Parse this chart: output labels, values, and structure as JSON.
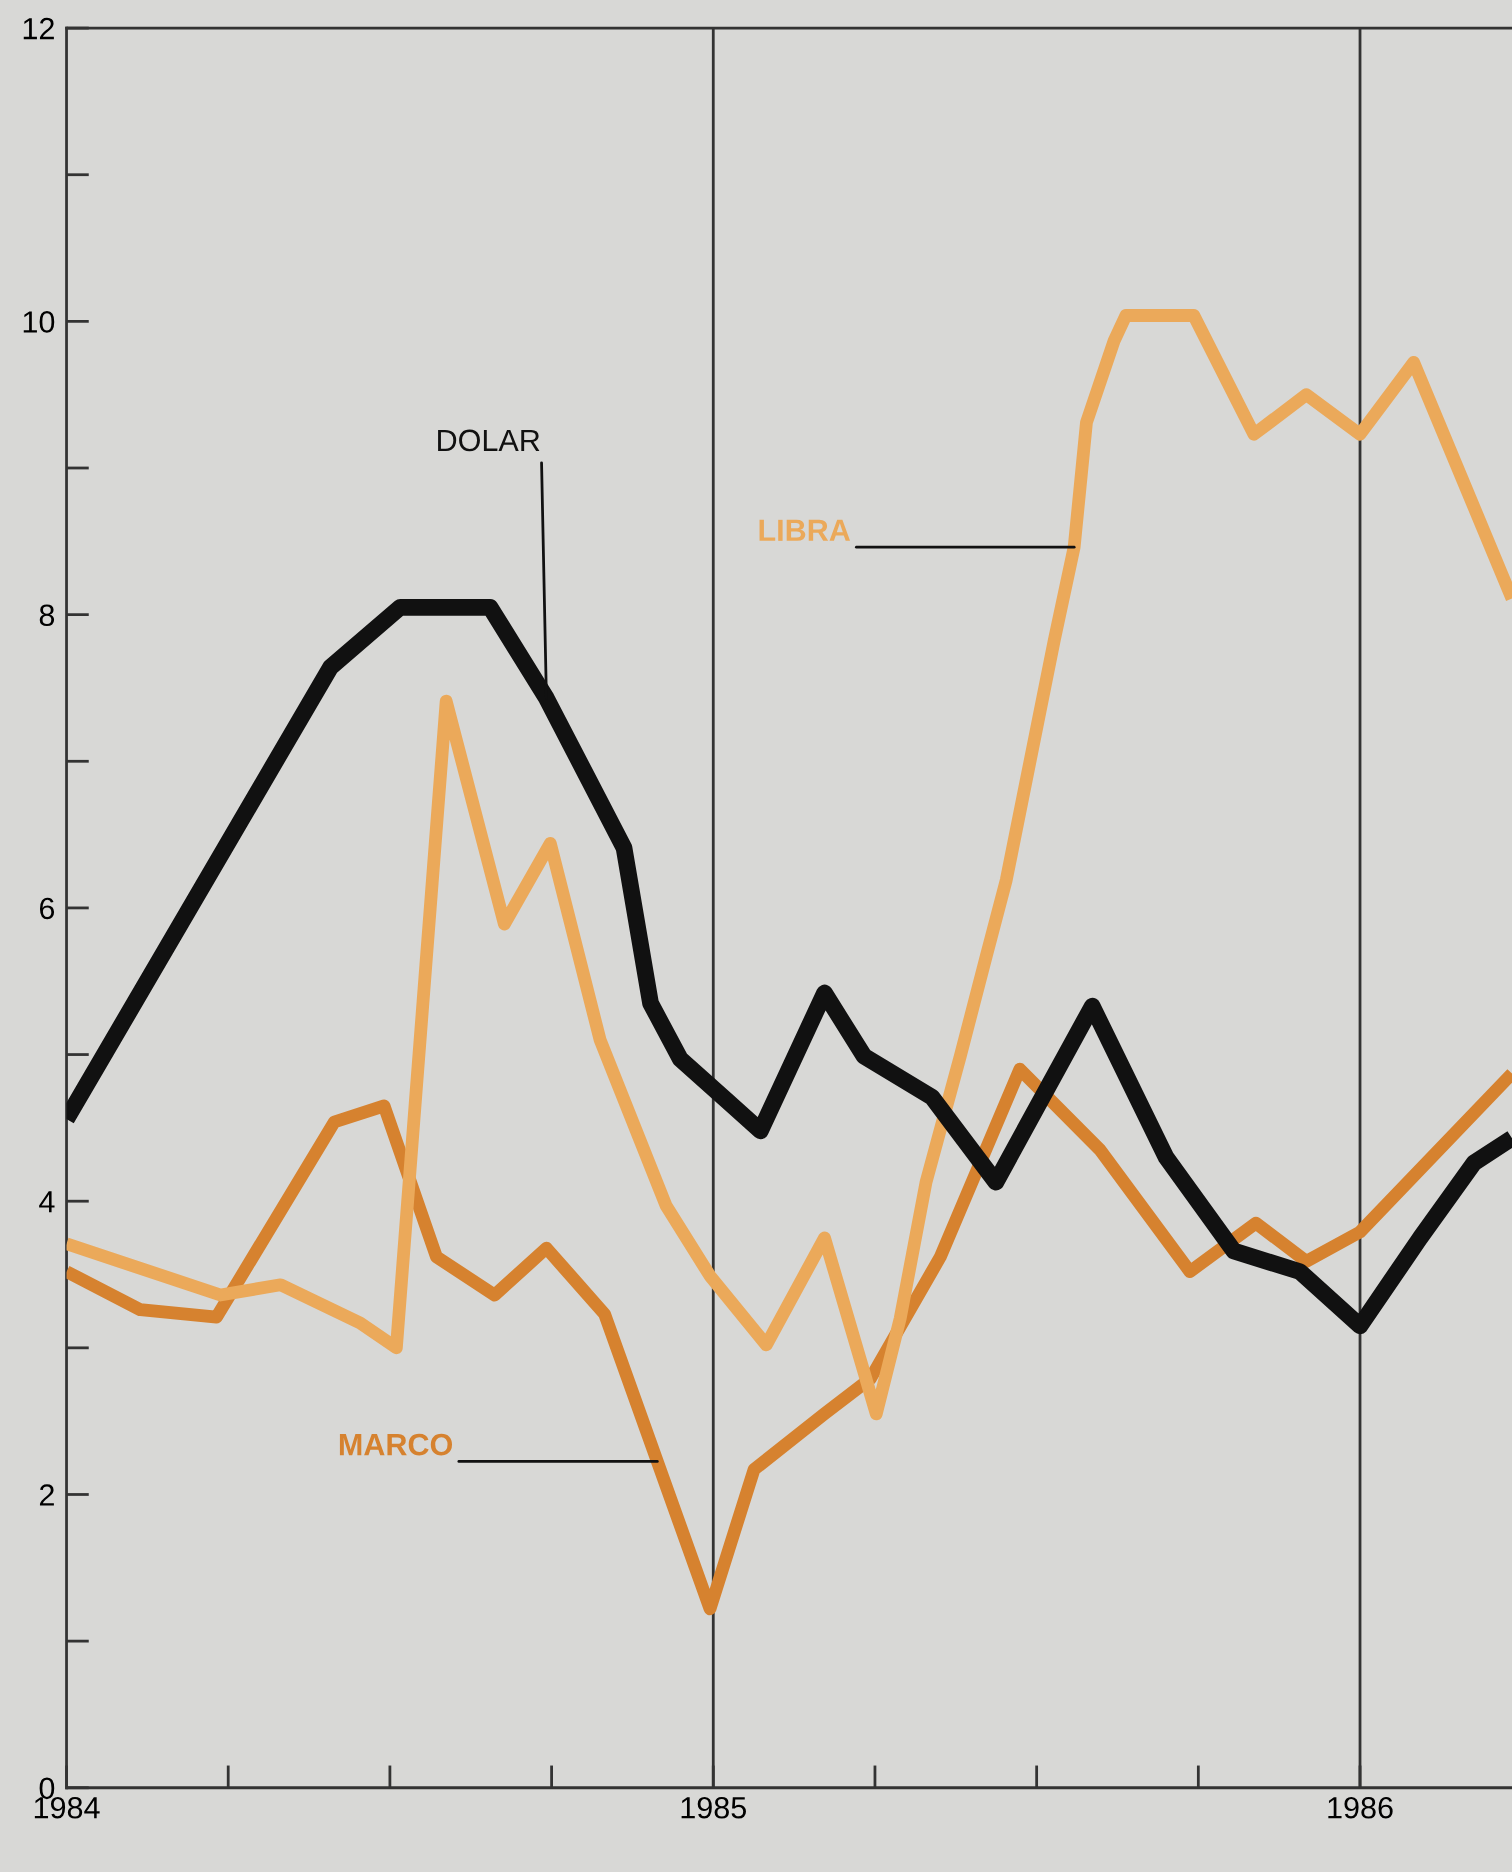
{
  "chart_data": {
    "type": "line",
    "series": [
      {
        "name": "DOLAR",
        "color": "#111111",
        "x": [
          1984.0,
          1984.408,
          1984.516,
          1984.655,
          1984.742,
          1984.862,
          1984.903,
          1984.949,
          1985.02,
          1985.073,
          1985.172,
          1985.233,
          1985.338,
          1985.437,
          1985.586,
          1985.7,
          1985.805,
          1985.907,
          1986.0,
          1986.093,
          1986.176,
          1986.235
        ],
        "values": [
          4.56,
          7.64,
          8.05,
          8.05,
          7.43,
          6.41,
          5.35,
          4.97,
          4.69,
          4.48,
          5.42,
          4.99,
          4.71,
          4.13,
          5.33,
          4.3,
          3.66,
          3.52,
          3.15,
          3.75,
          4.26,
          4.43
        ]
      },
      {
        "name": "LIBRA",
        "color": "#eba95a",
        "x": [
          1984.0,
          1984.238,
          1984.331,
          1984.454,
          1984.51,
          1984.587,
          1984.677,
          1984.748,
          1984.825,
          1984.927,
          1984.995,
          1985.082,
          1985.172,
          1985.252,
          1985.289,
          1985.329,
          1985.382,
          1985.422,
          1985.453,
          1985.527,
          1985.558,
          1985.577,
          1985.62,
          1985.638,
          1985.743,
          1985.836,
          1985.917,
          1986.0,
          1986.083,
          1986.235
        ],
        "values": [
          3.71,
          3.36,
          3.43,
          3.17,
          3.0,
          7.41,
          5.89,
          6.44,
          5.1,
          3.97,
          3.49,
          3.02,
          3.75,
          2.55,
          3.2,
          4.13,
          4.99,
          5.67,
          6.19,
          7.82,
          8.46,
          9.31,
          9.87,
          10.04,
          10.04,
          9.23,
          9.5,
          9.23,
          9.72,
          8.11
        ]
      },
      {
        "name": "MARCO",
        "color": "#d6822f",
        "x": [
          1984.0,
          1984.114,
          1984.232,
          1984.414,
          1984.491,
          1984.572,
          1984.662,
          1984.742,
          1984.832,
          1984.995,
          1985.063,
          1985.172,
          1985.243,
          1985.351,
          1985.474,
          1985.598,
          1985.737,
          1985.839,
          1985.917,
          1986.0,
          1986.235
        ],
        "values": [
          3.52,
          3.26,
          3.21,
          4.54,
          4.65,
          3.62,
          3.36,
          3.68,
          3.23,
          1.22,
          2.17,
          2.55,
          2.79,
          3.62,
          4.9,
          4.35,
          3.52,
          3.85,
          3.59,
          3.79,
          4.87
        ]
      }
    ],
    "xlim": [
      1984.0,
      1986.235
    ],
    "xticks": [
      {
        "value": 1984.0,
        "label": "1984"
      },
      {
        "value": 1984.25,
        "label": null
      },
      {
        "value": 1984.5,
        "label": null
      },
      {
        "value": 1984.75,
        "label": null
      },
      {
        "value": 1985.0,
        "label": "1985"
      },
      {
        "value": 1985.25,
        "label": null
      },
      {
        "value": 1985.5,
        "label": null
      },
      {
        "value": 1985.75,
        "label": null
      },
      {
        "value": 1986.0,
        "label": "1986"
      }
    ],
    "ylim": [
      0,
      12
    ],
    "yticks": [
      0,
      {
        "value": 1,
        "label": null
      },
      2,
      {
        "value": 3,
        "label": null
      },
      4,
      {
        "value": 5,
        "label": null
      },
      6,
      {
        "value": 7,
        "label": null
      },
      8,
      {
        "value": 9,
        "label": null
      },
      10,
      {
        "value": 11,
        "label": null
      },
      12
    ],
    "ref_lines": [
      {
        "axis": "x",
        "value": 1985.0,
        "color": "#333333"
      },
      {
        "axis": "x",
        "value": 1986.0,
        "color": "#333333"
      }
    ],
    "grid": false,
    "legend": false,
    "marker": "none",
    "line_style": "solid"
  }
}
